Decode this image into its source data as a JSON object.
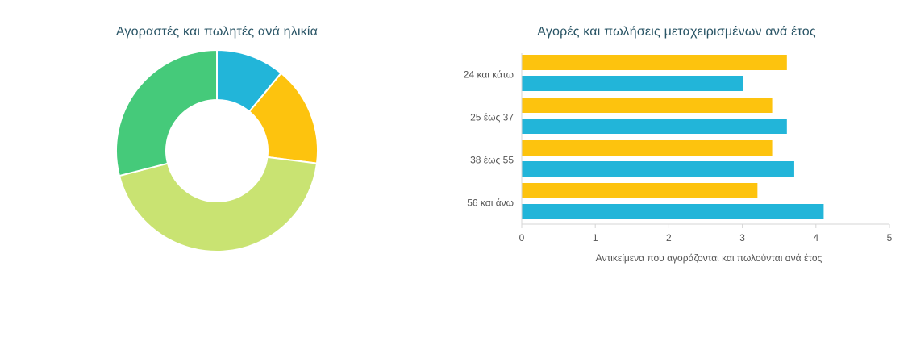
{
  "chart_data": [
    {
      "type": "pie",
      "title": "Αγοραστές και πωλητές ανά ηλικία",
      "donut": true,
      "slices": [
        {
          "color": "#22b5d9",
          "value": 11
        },
        {
          "color": "#fdc30e",
          "value": 16
        },
        {
          "color": "#c9e372",
          "value": 44
        },
        {
          "color": "#45ca7a",
          "value": 29
        }
      ],
      "legend": "none"
    },
    {
      "type": "bar",
      "orientation": "horizontal",
      "title": "Αγορές και πωλήσεις μεταχειρισμένων ανά έτος",
      "categories": [
        "24 και κάτω",
        "25 έως 37",
        "38 έως 55",
        "56 και άνω"
      ],
      "series": [
        {
          "color": "#fdc30e",
          "values": [
            3.6,
            3.4,
            3.4,
            3.2
          ]
        },
        {
          "color": "#22b5d9",
          "values": [
            3.0,
            3.6,
            3.7,
            4.1
          ]
        }
      ],
      "xlim": [
        0,
        5
      ],
      "xticks": [
        "0",
        "1",
        "2",
        "3",
        "4",
        "5"
      ],
      "xlabel": "Αντικείμενα που αγοράζονται και πωλούνται ανά έτος",
      "ylabel": "",
      "grid": false,
      "legend": "none"
    }
  ]
}
